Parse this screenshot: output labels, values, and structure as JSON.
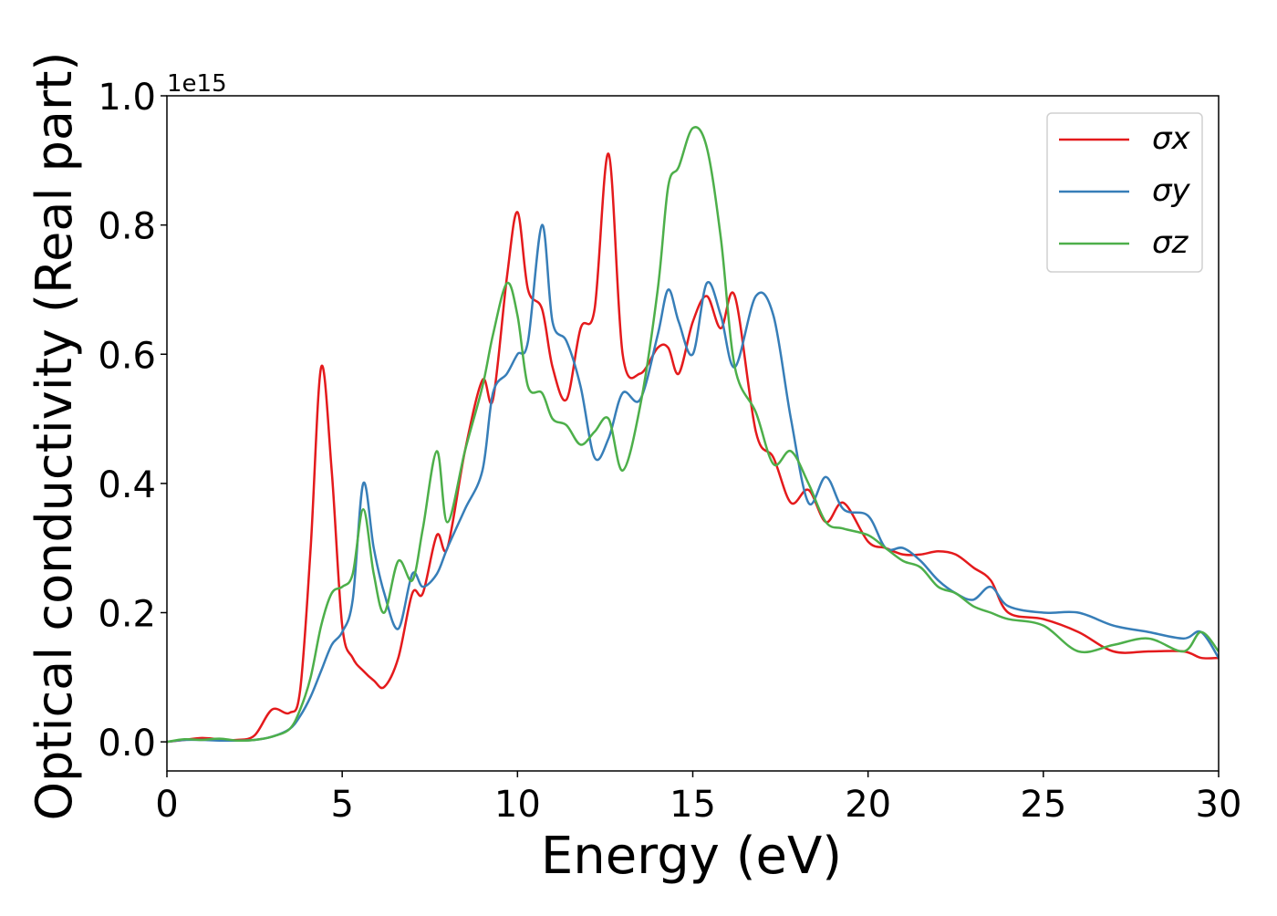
{
  "chart_data": {
    "type": "line",
    "xlabel": "Energy (eV)",
    "ylabel": "Optical conductivity (Real part)",
    "y_offset_text": "1e15",
    "x": [
      0,
      0.5,
      1,
      1.5,
      2,
      2.5,
      3,
      3.5,
      3.8,
      4.1,
      4.4,
      4.7,
      5,
      5.3,
      5.6,
      5.9,
      6.2,
      6.6,
      7,
      7.3,
      7.7,
      8,
      8.5,
      9,
      9.3,
      9.7,
      10,
      10.3,
      10.7,
      11,
      11.4,
      11.8,
      12.2,
      12.6,
      13,
      13.5,
      14,
      14.3,
      14.6,
      15,
      15.4,
      15.8,
      16.2,
      16.8,
      17.3,
      17.8,
      18.3,
      18.8,
      19.3,
      20,
      20.5,
      21,
      21.5,
      22,
      22.5,
      23,
      23.5,
      24,
      25,
      26,
      27,
      28,
      29,
      29.5,
      30
    ],
    "series": [
      {
        "name": "σx",
        "color": "#e41a1c",
        "values": [
          0,
          0.003,
          0.006,
          0.004,
          0.003,
          0.01,
          0.05,
          0.045,
          0.08,
          0.3,
          0.58,
          0.42,
          0.18,
          0.13,
          0.11,
          0.095,
          0.085,
          0.13,
          0.23,
          0.23,
          0.32,
          0.3,
          0.45,
          0.56,
          0.53,
          0.72,
          0.82,
          0.7,
          0.67,
          0.58,
          0.53,
          0.64,
          0.67,
          0.91,
          0.6,
          0.57,
          0.61,
          0.61,
          0.57,
          0.65,
          0.69,
          0.64,
          0.69,
          0.48,
          0.44,
          0.37,
          0.39,
          0.34,
          0.37,
          0.31,
          0.3,
          0.29,
          0.29,
          0.295,
          0.29,
          0.27,
          0.25,
          0.2,
          0.19,
          0.17,
          0.14,
          0.14,
          0.14,
          0.13,
          0.13
        ]
      },
      {
        "name": "σy",
        "color": "#377eb8",
        "values": [
          0,
          0.003,
          0.003,
          0.002,
          0.002,
          0.003,
          0.008,
          0.02,
          0.04,
          0.07,
          0.11,
          0.15,
          0.17,
          0.22,
          0.4,
          0.3,
          0.23,
          0.175,
          0.26,
          0.24,
          0.26,
          0.3,
          0.36,
          0.42,
          0.54,
          0.57,
          0.6,
          0.62,
          0.8,
          0.65,
          0.62,
          0.55,
          0.44,
          0.47,
          0.54,
          0.53,
          0.63,
          0.7,
          0.65,
          0.6,
          0.71,
          0.66,
          0.58,
          0.69,
          0.66,
          0.5,
          0.37,
          0.41,
          0.36,
          0.35,
          0.3,
          0.3,
          0.28,
          0.25,
          0.23,
          0.22,
          0.24,
          0.21,
          0.2,
          0.2,
          0.18,
          0.17,
          0.16,
          0.17,
          0.13
        ]
      },
      {
        "name": "σz",
        "color": "#4daf4a",
        "values": [
          0,
          0.004,
          0.003,
          0.005,
          0.002,
          0.003,
          0.008,
          0.02,
          0.05,
          0.1,
          0.18,
          0.23,
          0.24,
          0.26,
          0.36,
          0.26,
          0.2,
          0.28,
          0.25,
          0.33,
          0.45,
          0.34,
          0.45,
          0.55,
          0.63,
          0.71,
          0.66,
          0.55,
          0.54,
          0.5,
          0.49,
          0.46,
          0.48,
          0.5,
          0.42,
          0.52,
          0.7,
          0.86,
          0.89,
          0.95,
          0.92,
          0.78,
          0.58,
          0.51,
          0.43,
          0.45,
          0.4,
          0.34,
          0.33,
          0.32,
          0.3,
          0.28,
          0.27,
          0.24,
          0.23,
          0.21,
          0.2,
          0.19,
          0.18,
          0.14,
          0.15,
          0.16,
          0.14,
          0.17,
          0.14
        ]
      }
    ],
    "xlim": [
      0,
      30
    ],
    "xticks": [
      0,
      5,
      10,
      15,
      20,
      25,
      30
    ],
    "ylim": [
      -0.045,
      1.0
    ],
    "yticks": [
      {
        "value": 0,
        "label": "0.0"
      },
      0.2,
      0.4,
      0.6,
      0.8,
      {
        "value": 1,
        "label": "1.0"
      }
    ],
    "grid": false,
    "legend": "upper right"
  }
}
